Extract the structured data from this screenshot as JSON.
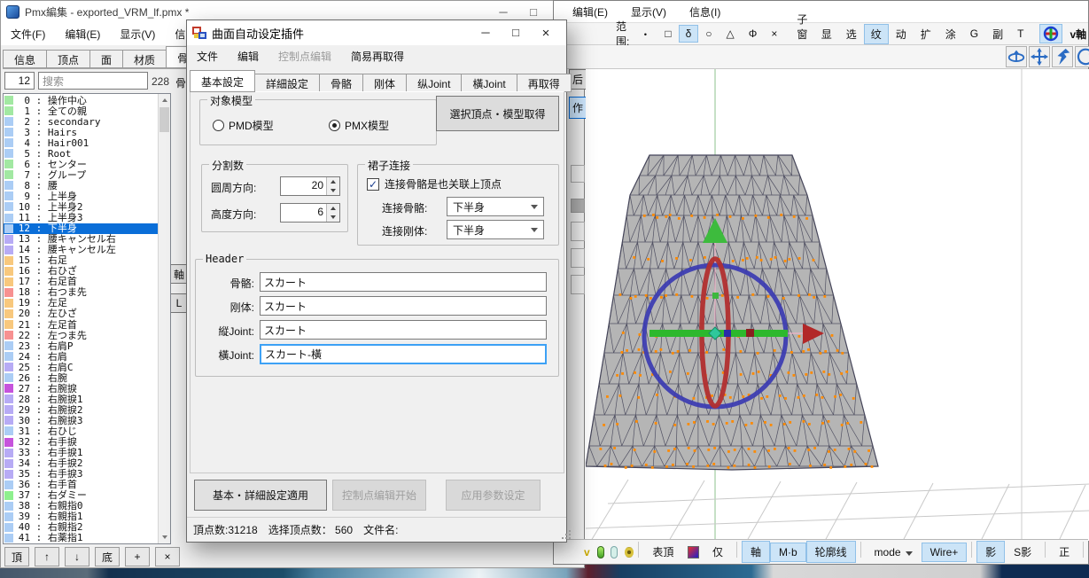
{
  "palette": {
    "g": "#a2e8a2",
    "g2": "#8ef08e",
    "b": "#abcdf5",
    "p": "#b7abf5",
    "m": "#c653dc",
    "o": "#f8c87d",
    "r": "#f79191",
    "selection": "#0a6ed8",
    "highlight": "#cce4f7"
  },
  "main_window": {
    "title": "Pmx編集 - exported_VRM_lf.pmx *",
    "caption_buttons": [
      "─",
      "□",
      "×"
    ],
    "menu": [
      "文件(F)",
      "编辑(E)",
      "显示(V)",
      "信息(I)"
    ],
    "tabs": [
      "信息",
      "顶点",
      "面",
      "材质",
      "骨骼"
    ],
    "active_tab": "骨骼",
    "index_value": "12",
    "search_placeholder": "搜索",
    "count_label": "228",
    "partial_label": "骨",
    "side_buttons": [
      "軸",
      "L"
    ],
    "selected_index": 12,
    "bones": [
      [
        "0",
        "操作中心",
        "g"
      ],
      [
        "1",
        "全ての親",
        "g"
      ],
      [
        "2",
        "secondary",
        "b"
      ],
      [
        "3",
        "Hairs",
        "b"
      ],
      [
        "4",
        "Hair001",
        "b"
      ],
      [
        "5",
        "Root",
        "b"
      ],
      [
        "6",
        "センター",
        "g"
      ],
      [
        "7",
        "グループ",
        "g"
      ],
      [
        "8",
        "腰",
        "b"
      ],
      [
        "9",
        "上半身",
        "b"
      ],
      [
        "10",
        "上半身2",
        "b"
      ],
      [
        "11",
        "上半身3",
        "b"
      ],
      [
        "12",
        "下半身",
        "b"
      ],
      [
        "13",
        "腰キャンセル右",
        "p"
      ],
      [
        "14",
        "腰キャンセル左",
        "p"
      ],
      [
        "15",
        "右足",
        "o"
      ],
      [
        "16",
        "右ひざ",
        "o"
      ],
      [
        "17",
        "右足首",
        "o"
      ],
      [
        "18",
        "右つま先",
        "r"
      ],
      [
        "19",
        "左足",
        "o"
      ],
      [
        "20",
        "左ひざ",
        "o"
      ],
      [
        "21",
        "左足首",
        "o"
      ],
      [
        "22",
        "左つま先",
        "r"
      ],
      [
        "23",
        "右肩P",
        "b"
      ],
      [
        "24",
        "右肩",
        "b"
      ],
      [
        "25",
        "右肩C",
        "p"
      ],
      [
        "26",
        "右腕",
        "b"
      ],
      [
        "27",
        "右腕捩",
        "m"
      ],
      [
        "28",
        "右腕捩1",
        "p"
      ],
      [
        "29",
        "右腕捩2",
        "p"
      ],
      [
        "30",
        "右腕捩3",
        "p"
      ],
      [
        "31",
        "右ひじ",
        "b"
      ],
      [
        "32",
        "右手捩",
        "m"
      ],
      [
        "33",
        "右手捩1",
        "p"
      ],
      [
        "34",
        "右手捩2",
        "p"
      ],
      [
        "35",
        "右手捩3",
        "p"
      ],
      [
        "36",
        "右手首",
        "b"
      ],
      [
        "37",
        "右ダミー",
        "g2"
      ],
      [
        "38",
        "右親指0",
        "b"
      ],
      [
        "39",
        "右親指1",
        "b"
      ],
      [
        "40",
        "右親指2",
        "b"
      ],
      [
        "41",
        "右薬指1",
        "b"
      ]
    ],
    "list_buttons": [
      "頂",
      "↑",
      "↓",
      "底",
      "+",
      "×"
    ]
  },
  "dialog": {
    "title": "曲面自动设定插件",
    "caption_buttons": [
      "─",
      "□",
      "×"
    ],
    "menu": [
      {
        "label": "文件",
        "enabled": true
      },
      {
        "label": "编辑",
        "enabled": true
      },
      {
        "label": "控制点编辑",
        "enabled": false
      },
      {
        "label": "简易再取得",
        "enabled": true
      }
    ],
    "tabs": [
      "基本設定",
      "詳細設定",
      "骨骼",
      "刚体",
      "纵Joint",
      "橫Joint",
      "再取得"
    ],
    "active_tab": "基本設定",
    "model_group": {
      "title": "对象模型",
      "options": [
        {
          "label": "PMD模型",
          "selected": false
        },
        {
          "label": "PMX模型",
          "selected": true
        }
      ]
    },
    "acquire_button": "選択頂点・模型取得",
    "division_group": {
      "title": "分割数",
      "rows": [
        {
          "label": "圆周方向:",
          "value": "20"
        },
        {
          "label": "高度方向:",
          "value": "6"
        }
      ]
    },
    "skirt_group": {
      "title": "裙子连接",
      "checkbox_label": "连接骨骼是也关联上顶点",
      "checked": true,
      "check_glyph": "✓",
      "rows": [
        {
          "label": "连接骨骼:",
          "value": "下半身"
        },
        {
          "label": "连接刚体:",
          "value": "下半身"
        }
      ]
    },
    "header_group": {
      "title": "Header",
      "rows": [
        {
          "label": "骨骼:",
          "value": "スカート",
          "focused": false
        },
        {
          "label": "刚体:",
          "value": "スカート",
          "focused": false
        },
        {
          "label": "縦Joint:",
          "value": "スカート",
          "focused": false
        },
        {
          "label": "橫Joint:",
          "value": "スカート-橫",
          "focused": true
        }
      ]
    },
    "buttons": [
      {
        "label": "基本・詳細設定適用",
        "enabled": true
      },
      {
        "label": "控制点编辑开始",
        "enabled": false
      },
      {
        "label": "应用参数设定",
        "enabled": false
      }
    ],
    "status": {
      "vertex_count": "頂点数:31218",
      "selected_count": "选择顶点数： 560",
      "filename": "文件名:"
    }
  },
  "view_window": {
    "menu": [
      "编辑(E)",
      "显示(V)",
      "信息(I)"
    ],
    "side_buttons": [
      {
        "label": "后",
        "active": false
      },
      {
        "label": "作",
        "active": true
      }
    ],
    "toolbar": {
      "range_label": "范围:",
      "range_items": [
        {
          "label": "・",
          "active": false
        },
        {
          "label": "□",
          "active": false
        },
        {
          "label": "δ",
          "active": true
        },
        {
          "label": "○",
          "active": false
        },
        {
          "label": "△",
          "active": false
        },
        {
          "label": "Φ",
          "active": false
        },
        {
          "label": "×",
          "active": false
        }
      ],
      "subwin_label": "子窗口:",
      "subwin_items": [
        {
          "label": "显",
          "active": false
        },
        {
          "label": "选",
          "active": false
        },
        {
          "label": "纹",
          "active": true
        },
        {
          "label": "动",
          "active": false
        },
        {
          "label": "扩",
          "active": false
        },
        {
          "label": "涂",
          "active": false
        },
        {
          "label": "G",
          "active": false
        },
        {
          "label": "副",
          "active": false
        },
        {
          "label": "T",
          "active": false
        }
      ],
      "axis_button": "v軸",
      "overflow": "»"
    },
    "bottom_toolbar": {
      "fragment": "v",
      "items": [
        {
          "label": "表頂",
          "active": false
        },
        {
          "label": "仅",
          "active": false
        },
        {
          "label": "軸",
          "active": true
        },
        {
          "label": "M·b",
          "active": true
        },
        {
          "label": "轮廓线",
          "active": true
        },
        {
          "label": "mode",
          "active": false,
          "dropdown": true
        },
        {
          "label": "Wire+",
          "active": true
        },
        {
          "label": "影",
          "active": true
        },
        {
          "label": "S影",
          "active": false
        },
        {
          "label": "正",
          "active": false
        }
      ]
    }
  },
  "scene": {
    "colors": {
      "mesh_fill": "#b5b5b5",
      "mesh_line": "#46465a",
      "vertex_dot": "#ff8a00",
      "axis_green": "#b3d6b3",
      "grid": "#c9c9c9",
      "far_line": "#d4d4d4",
      "gizmo_blue": "#3b3bb2",
      "gizmo_red": "#b22f2f",
      "gizmo_green": "#2db82d",
      "gizmo_teal": "#2fc89b",
      "gizmo_darkred": "#8b2020",
      "gizmo_darkblue": "#2a2aa8",
      "gizmo_pink": "#f0b3c8",
      "arrow_red": "#b22828",
      "icon_blue": "#2b6cc4"
    }
  }
}
